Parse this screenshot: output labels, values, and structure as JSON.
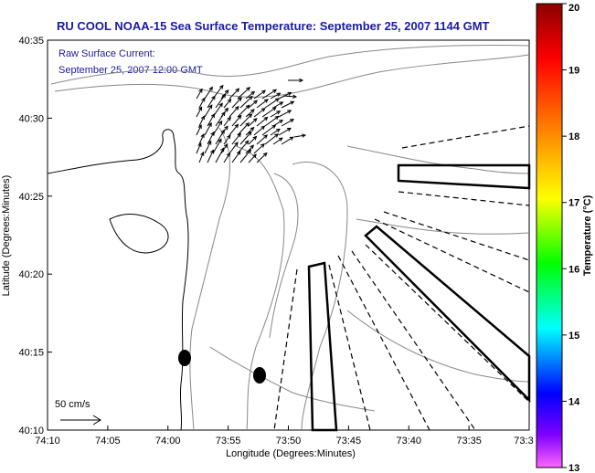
{
  "chart_data": {
    "type": "map",
    "title": "RU COOL  NOAA-15  Sea Surface Temperature:  September 25, 2007 1144 GMT",
    "subtitle_lines": [
      "Raw Surface Current:",
      "September 25, 2007 12:00 GMT"
    ],
    "xlabel": "Longitude (Degrees:Minutes)",
    "ylabel": "Latitude (Degrees:Minutes)",
    "x_ticks": [
      "74:10",
      "74:05",
      "74:00",
      "73:55",
      "73:50",
      "73:45",
      "73:40",
      "73:35",
      "73:3"
    ],
    "y_ticks": [
      "40:35",
      "40:30",
      "40:25",
      "40:20",
      "40:15",
      "40:10"
    ],
    "scale_label": "50 cm/s",
    "colorbar": {
      "label": "Temperature (°C)",
      "ticks": [
        "20",
        "19",
        "18",
        "17",
        "16",
        "15",
        "14",
        "13"
      ],
      "min": 13,
      "max": 20,
      "colors": [
        "#8b0000",
        "#ff0000",
        "#ff8000",
        "#ffff00",
        "#00ff00",
        "#00ffff",
        "#0000ff",
        "#8000ff",
        "#ff66ff"
      ]
    },
    "grid": false
  }
}
